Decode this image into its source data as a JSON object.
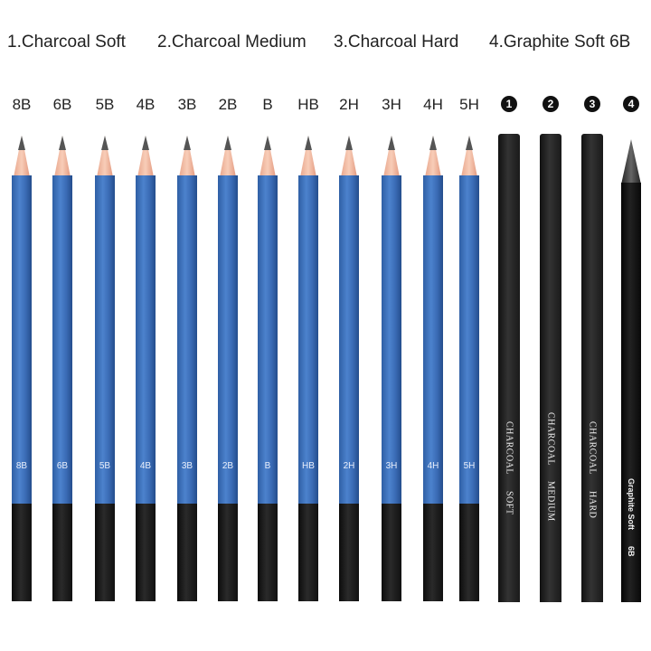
{
  "categories": [
    "1.Charcoal Soft",
    "2.Charcoal Medium",
    "3.Charcoal Hard",
    "4.Graphite Soft 6B"
  ],
  "grades": [
    "8B",
    "6B",
    "5B",
    "4B",
    "3B",
    "2B",
    "B",
    "HB",
    "2H",
    "3H",
    "4H",
    "5H"
  ],
  "numbers": [
    "1",
    "2",
    "3",
    "4"
  ],
  "charcoal_pencils": [
    {
      "line1": "CHARCOAL",
      "line2": "SOFT"
    },
    {
      "line1": "CHARCOAL",
      "line2": "MEDIUM"
    },
    {
      "line1": "CHARCOAL",
      "line2": "HARD"
    }
  ],
  "graphite_pencil": {
    "line1": "Graphite  Soft",
    "line2": "6B"
  },
  "colors": {
    "pencil_blue": "#3a6bb5",
    "pencil_black": "#111111",
    "wood": "#f3bba3"
  }
}
